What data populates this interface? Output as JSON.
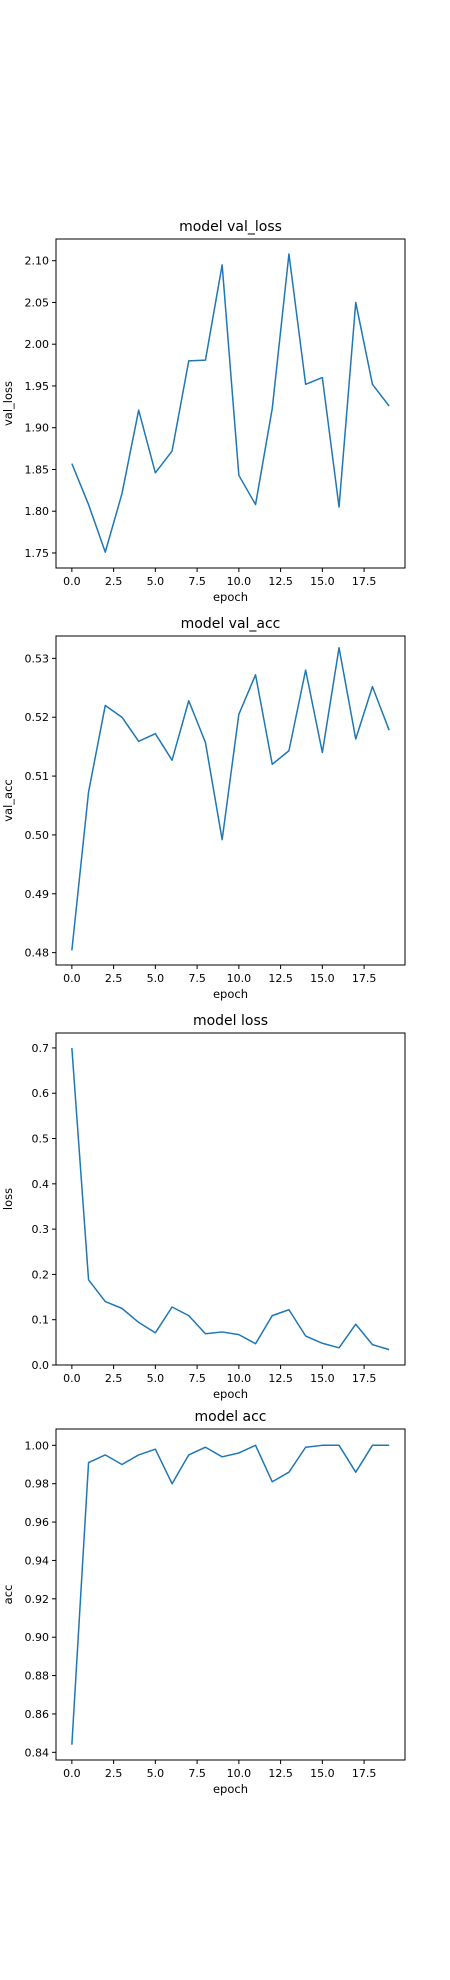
{
  "colors": {
    "line": "#1f77b4",
    "axis": "#000000",
    "background": "#ffffff"
  },
  "chart_data": [
    {
      "type": "line",
      "title": "model val_loss",
      "xlabel": "epoch",
      "ylabel": "val_loss",
      "grid": false,
      "xlim": [
        -0.95,
        19.95
      ],
      "ylim": [
        1.732,
        2.126
      ],
      "xticks": [
        0.0,
        2.5,
        5.0,
        7.5,
        10.0,
        12.5,
        15.0,
        17.5
      ],
      "xtick_labels": [
        "0.0",
        "2.5",
        "5.0",
        "7.5",
        "10.0",
        "12.5",
        "15.0",
        "17.5"
      ],
      "yticks": [
        1.75,
        1.8,
        1.85,
        1.9,
        1.95,
        2.0,
        2.05,
        2.1
      ],
      "ytick_labels": [
        "1.75",
        "1.80",
        "1.85",
        "1.90",
        "1.95",
        "2.00",
        "2.05",
        "2.10"
      ],
      "x": [
        0,
        1,
        2,
        3,
        4,
        5,
        6,
        7,
        8,
        9,
        10,
        11,
        12,
        13,
        14,
        15,
        16,
        17,
        18,
        19
      ],
      "values": [
        1.857,
        1.808,
        1.751,
        1.821,
        1.921,
        1.846,
        1.872,
        1.98,
        1.981,
        2.095,
        1.843,
        1.808,
        1.923,
        2.108,
        1.952,
        1.96,
        1.805,
        2.05,
        1.952,
        1.926
      ]
    },
    {
      "type": "line",
      "title": "model val_acc",
      "xlabel": "epoch",
      "ylabel": "val_acc",
      "grid": false,
      "xlim": [
        -0.95,
        19.95
      ],
      "ylim": [
        0.4779,
        0.5338
      ],
      "xticks": [
        0.0,
        2.5,
        5.0,
        7.5,
        10.0,
        12.5,
        15.0,
        17.5
      ],
      "xtick_labels": [
        "0.0",
        "2.5",
        "5.0",
        "7.5",
        "10.0",
        "12.5",
        "15.0",
        "17.5"
      ],
      "yticks": [
        0.48,
        0.49,
        0.5,
        0.51,
        0.52,
        0.53
      ],
      "ytick_labels": [
        "0.48",
        "0.49",
        "0.50",
        "0.51",
        "0.52",
        "0.53"
      ],
      "x": [
        0,
        1,
        2,
        3,
        4,
        5,
        6,
        7,
        8,
        9,
        10,
        11,
        12,
        13,
        14,
        15,
        16,
        17,
        18,
        19
      ],
      "values": [
        0.4804,
        0.5073,
        0.522,
        0.52,
        0.5159,
        0.5172,
        0.5127,
        0.5228,
        0.5157,
        0.4992,
        0.5205,
        0.5272,
        0.512,
        0.5143,
        0.528,
        0.514,
        0.5318,
        0.5163,
        0.5252,
        0.5178
      ]
    },
    {
      "type": "line",
      "title": "model loss",
      "xlabel": "epoch",
      "ylabel": "loss",
      "grid": false,
      "xlim": [
        -0.95,
        19.95
      ],
      "ylim": [
        0.0,
        0.733
      ],
      "xticks": [
        0.0,
        2.5,
        5.0,
        7.5,
        10.0,
        12.5,
        15.0,
        17.5
      ],
      "xtick_labels": [
        "0.0",
        "2.5",
        "5.0",
        "7.5",
        "10.0",
        "12.5",
        "15.0",
        "17.5"
      ],
      "yticks": [
        0.0,
        0.1,
        0.2,
        0.3,
        0.4,
        0.5,
        0.6,
        0.7
      ],
      "ytick_labels": [
        "0.0",
        "0.1",
        "0.2",
        "0.3",
        "0.4",
        "0.5",
        "0.6",
        "0.7"
      ],
      "x": [
        0,
        1,
        2,
        3,
        4,
        5,
        6,
        7,
        8,
        9,
        10,
        11,
        12,
        13,
        14,
        15,
        16,
        17,
        18,
        19
      ],
      "values": [
        0.7,
        0.188,
        0.14,
        0.125,
        0.094,
        0.071,
        0.128,
        0.109,
        0.069,
        0.073,
        0.067,
        0.047,
        0.109,
        0.122,
        0.064,
        0.048,
        0.038,
        0.09,
        0.045,
        0.034
      ]
    },
    {
      "type": "line",
      "title": "model acc",
      "xlabel": "epoch",
      "ylabel": "acc",
      "grid": false,
      "xlim": [
        -0.95,
        19.95
      ],
      "ylim": [
        0.836,
        1.0085
      ],
      "xticks": [
        0.0,
        2.5,
        5.0,
        7.5,
        10.0,
        12.5,
        15.0,
        17.5
      ],
      "xtick_labels": [
        "0.0",
        "2.5",
        "5.0",
        "7.5",
        "10.0",
        "12.5",
        "15.0",
        "17.5"
      ],
      "yticks": [
        0.84,
        0.86,
        0.88,
        0.9,
        0.92,
        0.94,
        0.96,
        0.98,
        1.0
      ],
      "ytick_labels": [
        "0.84",
        "0.86",
        "0.88",
        "0.90",
        "0.92",
        "0.94",
        "0.96",
        "0.98",
        "1.00"
      ],
      "x": [
        0,
        1,
        2,
        3,
        4,
        5,
        6,
        7,
        8,
        9,
        10,
        11,
        12,
        13,
        14,
        15,
        16,
        17,
        18,
        19
      ],
      "values": [
        0.844,
        0.991,
        0.995,
        0.99,
        0.995,
        0.998,
        0.98,
        0.995,
        0.999,
        0.994,
        0.996,
        1.0,
        0.981,
        0.986,
        0.999,
        1.0,
        1.0,
        0.986,
        1.0,
        1.0
      ]
    }
  ]
}
